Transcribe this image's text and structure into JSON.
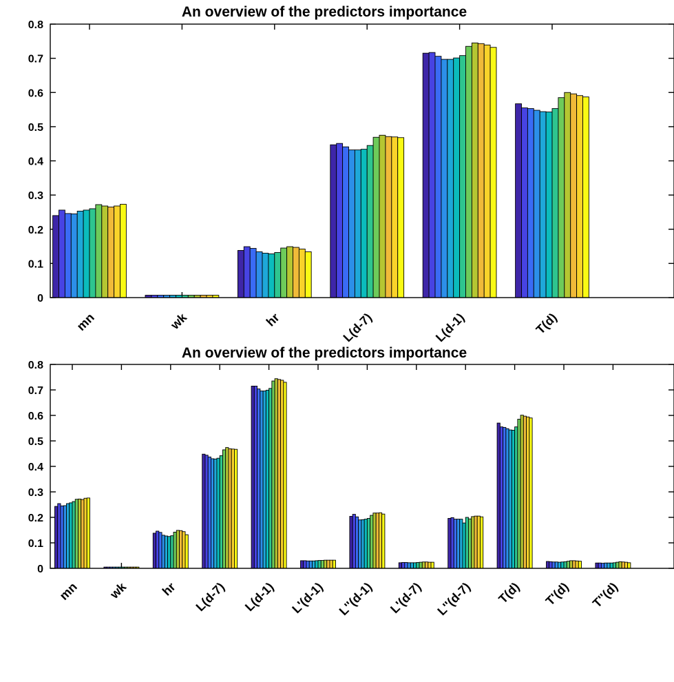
{
  "palette": [
    "#3e26a8",
    "#4743e3",
    "#3a6bf5",
    "#2c8fe9",
    "#1ea8d9",
    "#0bbcbc",
    "#2ec58f",
    "#6ecb5a",
    "#b5c632",
    "#f0ba39",
    "#f9d32a",
    "#f9fa14"
  ],
  "chart_data": [
    {
      "type": "bar",
      "title": "An overview of the predictors importance",
      "ylim": [
        0,
        0.8
      ],
      "yticks": [
        "0",
        "0.1",
        "0.2",
        "0.3",
        "0.4",
        "0.5",
        "0.6",
        "0.7",
        "0.8"
      ],
      "grid": false,
      "categories": [
        "mn",
        "wk",
        "hr",
        "L(d-7)",
        "L(d-1)",
        "T(d)"
      ],
      "values": [
        [
          0.24,
          0.256,
          0.246,
          0.245,
          0.253,
          0.256,
          0.26,
          0.272,
          0.268,
          0.265,
          0.268,
          0.273
        ],
        [
          0.007,
          0.007,
          0.007,
          0.007,
          0.007,
          0.007,
          0.007,
          0.007,
          0.007,
          0.007,
          0.007,
          0.007
        ],
        [
          0.138,
          0.149,
          0.144,
          0.134,
          0.13,
          0.128,
          0.132,
          0.145,
          0.149,
          0.147,
          0.142,
          0.134
        ],
        [
          0.447,
          0.451,
          0.441,
          0.432,
          0.432,
          0.434,
          0.445,
          0.469,
          0.475,
          0.471,
          0.47,
          0.468
        ],
        [
          0.715,
          0.717,
          0.706,
          0.697,
          0.697,
          0.701,
          0.708,
          0.735,
          0.745,
          0.743,
          0.739,
          0.732
        ],
        [
          0.567,
          0.555,
          0.553,
          0.548,
          0.544,
          0.543,
          0.553,
          0.585,
          0.6,
          0.596,
          0.591,
          0.587
        ]
      ]
    },
    {
      "type": "bar",
      "title": "An overview of the predictors importance",
      "ylim": [
        0,
        0.8
      ],
      "yticks": [
        "0",
        "0.1",
        "0.2",
        "0.3",
        "0.4",
        "0.5",
        "0.6",
        "0.7",
        "0.8"
      ],
      "grid": false,
      "categories": [
        "mn",
        "wk",
        "hr",
        "L(d-7)",
        "L(d-1)",
        "L'(d-1)",
        "L''(d-1)",
        "L'(d-7)",
        "L''(d-7)",
        "T(d)",
        "T'(d)",
        "T''(d)"
      ],
      "values": [
        [
          0.243,
          0.254,
          0.245,
          0.246,
          0.254,
          0.257,
          0.262,
          0.271,
          0.272,
          0.27,
          0.275,
          0.276
        ],
        [
          0.005,
          0.005,
          0.005,
          0.005,
          0.005,
          0.005,
          0.005,
          0.005,
          0.005,
          0.005,
          0.005,
          0.005
        ],
        [
          0.138,
          0.146,
          0.141,
          0.13,
          0.127,
          0.125,
          0.128,
          0.142,
          0.149,
          0.148,
          0.144,
          0.132
        ],
        [
          0.448,
          0.444,
          0.437,
          0.43,
          0.429,
          0.432,
          0.442,
          0.465,
          0.474,
          0.469,
          0.468,
          0.467
        ],
        [
          0.715,
          0.715,
          0.704,
          0.696,
          0.696,
          0.699,
          0.706,
          0.735,
          0.744,
          0.741,
          0.738,
          0.73
        ],
        [
          0.03,
          0.03,
          0.029,
          0.029,
          0.029,
          0.03,
          0.031,
          0.031,
          0.032,
          0.032,
          0.032,
          0.032
        ],
        [
          0.204,
          0.212,
          0.202,
          0.19,
          0.191,
          0.193,
          0.196,
          0.208,
          0.217,
          0.217,
          0.218,
          0.213
        ],
        [
          0.022,
          0.023,
          0.023,
          0.022,
          0.022,
          0.022,
          0.023,
          0.024,
          0.025,
          0.025,
          0.024,
          0.024
        ],
        [
          0.196,
          0.199,
          0.193,
          0.193,
          0.193,
          0.178,
          0.2,
          0.194,
          0.203,
          0.205,
          0.205,
          0.202
        ],
        [
          0.57,
          0.555,
          0.553,
          0.548,
          0.543,
          0.542,
          0.555,
          0.585,
          0.601,
          0.597,
          0.594,
          0.59
        ],
        [
          0.027,
          0.026,
          0.025,
          0.025,
          0.024,
          0.025,
          0.026,
          0.028,
          0.03,
          0.03,
          0.029,
          0.028
        ],
        [
          0.021,
          0.021,
          0.02,
          0.021,
          0.021,
          0.021,
          0.022,
          0.024,
          0.026,
          0.025,
          0.024,
          0.022
        ]
      ]
    }
  ]
}
